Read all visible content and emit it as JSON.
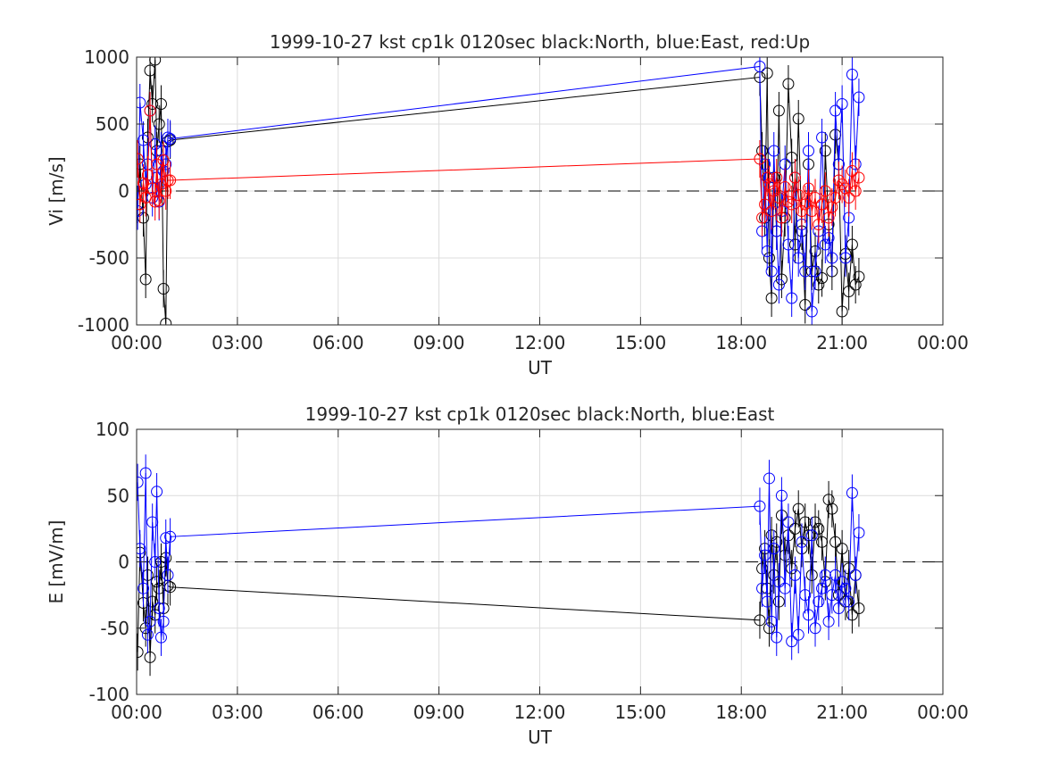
{
  "chart_data": [
    {
      "type": "line",
      "title": "1999-10-27 kst cp1k 0120sec black:North, blue:East, red:Up",
      "xlabel": "UT",
      "ylabel": "Vi [m/s]",
      "xlim": [
        0,
        24
      ],
      "ylim": [
        -1000,
        1000
      ],
      "xticks": [
        0,
        3,
        6,
        9,
        12,
        15,
        18,
        21,
        24
      ],
      "xtick_labels": [
        "00:00",
        "03:00",
        "06:00",
        "09:00",
        "12:00",
        "15:00",
        "18:00",
        "21:00",
        "00:00"
      ],
      "yticks": [
        -1000,
        -500,
        0,
        500,
        1000
      ],
      "ytick_labels": [
        "-1000",
        "-500",
        "0",
        "500",
        "1000"
      ],
      "grid": true,
      "reference_line": {
        "y": 0,
        "style": "dashed"
      },
      "series": [
        {
          "name": "North",
          "color": "#000000",
          "x": [
            0.03,
            0.1,
            0.2,
            0.27,
            0.33,
            0.4,
            0.47,
            0.55,
            0.6,
            0.67,
            0.73,
            0.8,
            0.87,
            0.93,
            1.0,
            18.55,
            18.62,
            18.7,
            18.77,
            18.83,
            18.9,
            18.97,
            19.05,
            19.12,
            19.2,
            19.3,
            19.4,
            19.5,
            19.6,
            19.7,
            19.8,
            19.9,
            20.0,
            20.1,
            20.2,
            20.3,
            20.4,
            20.5,
            20.6,
            20.7,
            20.8,
            20.9,
            21.0,
            21.1,
            21.2,
            21.3,
            21.4,
            21.5
          ],
          "y": [
            -100,
            200,
            -200,
            -660,
            400,
            900,
            650,
            980,
            300,
            500,
            650,
            -730,
            -990,
            370,
            380,
            850,
            300,
            -200,
            880,
            -500,
            -800,
            100,
            -300,
            600,
            -660,
            -200,
            800,
            250,
            -400,
            540,
            -300,
            -850,
            200,
            -600,
            -450,
            -700,
            -650,
            300,
            -250,
            -600,
            420,
            200,
            -900,
            -470,
            -750,
            -400,
            -700,
            -640
          ]
        },
        {
          "name": "East",
          "color": "#0000ff",
          "x": [
            0.03,
            0.1,
            0.2,
            0.27,
            0.33,
            0.4,
            0.47,
            0.55,
            0.6,
            0.67,
            0.73,
            0.8,
            0.87,
            0.93,
            1.0,
            18.55,
            18.62,
            18.7,
            18.77,
            18.83,
            18.9,
            18.97,
            19.05,
            19.12,
            19.2,
            19.3,
            19.4,
            19.5,
            19.6,
            19.7,
            19.8,
            19.9,
            20.0,
            20.1,
            20.2,
            20.3,
            20.4,
            20.5,
            20.6,
            20.7,
            20.8,
            20.9,
            21.0,
            21.1,
            21.2,
            21.3,
            21.4,
            21.5
          ],
          "y": [
            -150,
            660,
            380,
            50,
            200,
            600,
            -50,
            350,
            100,
            -80,
            300,
            150,
            200,
            400,
            390,
            930,
            -300,
            200,
            -450,
            100,
            -600,
            300,
            -300,
            -700,
            -150,
            200,
            -400,
            -800,
            100,
            -500,
            -250,
            -600,
            300,
            -900,
            -600,
            -300,
            400,
            -400,
            -350,
            -500,
            600,
            200,
            650,
            -500,
            -200,
            870,
            200,
            700
          ]
        },
        {
          "name": "Up",
          "color": "#ff0000",
          "x": [
            0.03,
            0.1,
            0.2,
            0.27,
            0.33,
            0.4,
            0.47,
            0.55,
            0.6,
            0.67,
            0.73,
            0.8,
            0.87,
            0.93,
            1.0,
            18.55,
            18.62,
            18.7,
            18.77,
            18.83,
            18.9,
            18.97,
            19.05,
            19.12,
            19.2,
            19.3,
            19.4,
            19.5,
            19.6,
            19.7,
            19.8,
            19.9,
            20.0,
            20.1,
            20.2,
            20.3,
            20.4,
            20.5,
            20.6,
            20.7,
            20.8,
            20.9,
            21.0,
            21.1,
            21.2,
            21.3,
            21.4,
            21.5
          ],
          "y": [
            240,
            -100,
            60,
            -50,
            120,
            600,
            20,
            -80,
            200,
            -70,
            50,
            230,
            0,
            80,
            80,
            240,
            -200,
            -100,
            100,
            50,
            -150,
            0,
            100,
            -50,
            -200,
            30,
            -80,
            -100,
            100,
            -30,
            -150,
            -100,
            20,
            -150,
            -50,
            -250,
            -100,
            0,
            -200,
            -120,
            -50,
            80,
            50,
            20,
            -50,
            150,
            0,
            100
          ]
        }
      ]
    },
    {
      "type": "line",
      "title": "1999-10-27 kst cp1k 0120sec black:North, blue:East",
      "xlabel": "UT",
      "ylabel": "E [mV/m]",
      "xlim": [
        0,
        24
      ],
      "ylim": [
        -100,
        100
      ],
      "xticks": [
        0,
        3,
        6,
        9,
        12,
        15,
        18,
        21,
        24
      ],
      "xtick_labels": [
        "00:00",
        "03:00",
        "06:00",
        "09:00",
        "12:00",
        "15:00",
        "18:00",
        "21:00",
        "00:00"
      ],
      "yticks": [
        -100,
        -50,
        0,
        50,
        100
      ],
      "ytick_labels": [
        "-100",
        "-50",
        "0",
        "50",
        "100"
      ],
      "grid": true,
      "reference_line": {
        "y": 0,
        "style": "dashed"
      },
      "series": [
        {
          "name": "North",
          "color": "#000000",
          "x": [
            0.03,
            0.1,
            0.2,
            0.27,
            0.33,
            0.4,
            0.47,
            0.55,
            0.6,
            0.67,
            0.73,
            0.8,
            0.87,
            0.93,
            1.0,
            18.55,
            18.62,
            18.7,
            18.77,
            18.83,
            18.9,
            18.97,
            19.05,
            19.12,
            19.2,
            19.3,
            19.4,
            19.5,
            19.6,
            19.7,
            19.8,
            19.9,
            20.0,
            20.1,
            20.2,
            20.3,
            20.4,
            20.5,
            20.6,
            20.7,
            20.8,
            20.9,
            21.0,
            21.1,
            21.2,
            21.3,
            21.4,
            21.5
          ],
          "y": [
            -68,
            7,
            -31,
            -50,
            -10,
            -72,
            -30,
            -40,
            -15,
            -20,
            0,
            -35,
            3,
            -18,
            -19,
            -44,
            -5,
            10,
            -20,
            -50,
            20,
            -10,
            15,
            -30,
            35,
            5,
            20,
            -5,
            25,
            40,
            10,
            30,
            20,
            -10,
            30,
            25,
            15,
            -15,
            47,
            40,
            15,
            -25,
            10,
            -30,
            -5,
            -40,
            -10,
            -35
          ]
        },
        {
          "name": "East",
          "color": "#0000ff",
          "x": [
            0.03,
            0.1,
            0.2,
            0.27,
            0.33,
            0.4,
            0.47,
            0.55,
            0.6,
            0.67,
            0.73,
            0.8,
            0.87,
            0.93,
            1.0,
            18.55,
            18.62,
            18.7,
            18.77,
            18.83,
            18.9,
            18.97,
            19.05,
            19.12,
            19.2,
            19.3,
            19.4,
            19.5,
            19.6,
            19.7,
            19.8,
            19.9,
            20.0,
            20.1,
            20.2,
            20.3,
            20.4,
            20.5,
            20.6,
            20.7,
            20.8,
            20.9,
            21.0,
            21.1,
            21.2,
            21.3,
            21.4,
            21.5
          ],
          "y": [
            60,
            10,
            -20,
            67,
            -55,
            -45,
            30,
            0,
            53,
            -35,
            -57,
            -45,
            18,
            -10,
            19,
            42,
            -20,
            5,
            -30,
            63,
            -45,
            10,
            -57,
            -15,
            50,
            -20,
            30,
            -60,
            -10,
            -55,
            15,
            -25,
            -40,
            20,
            -50,
            -30,
            -20,
            -10,
            -45,
            -25,
            -10,
            -35,
            -15,
            -20,
            -30,
            52,
            -10,
            22
          ]
        }
      ]
    }
  ]
}
